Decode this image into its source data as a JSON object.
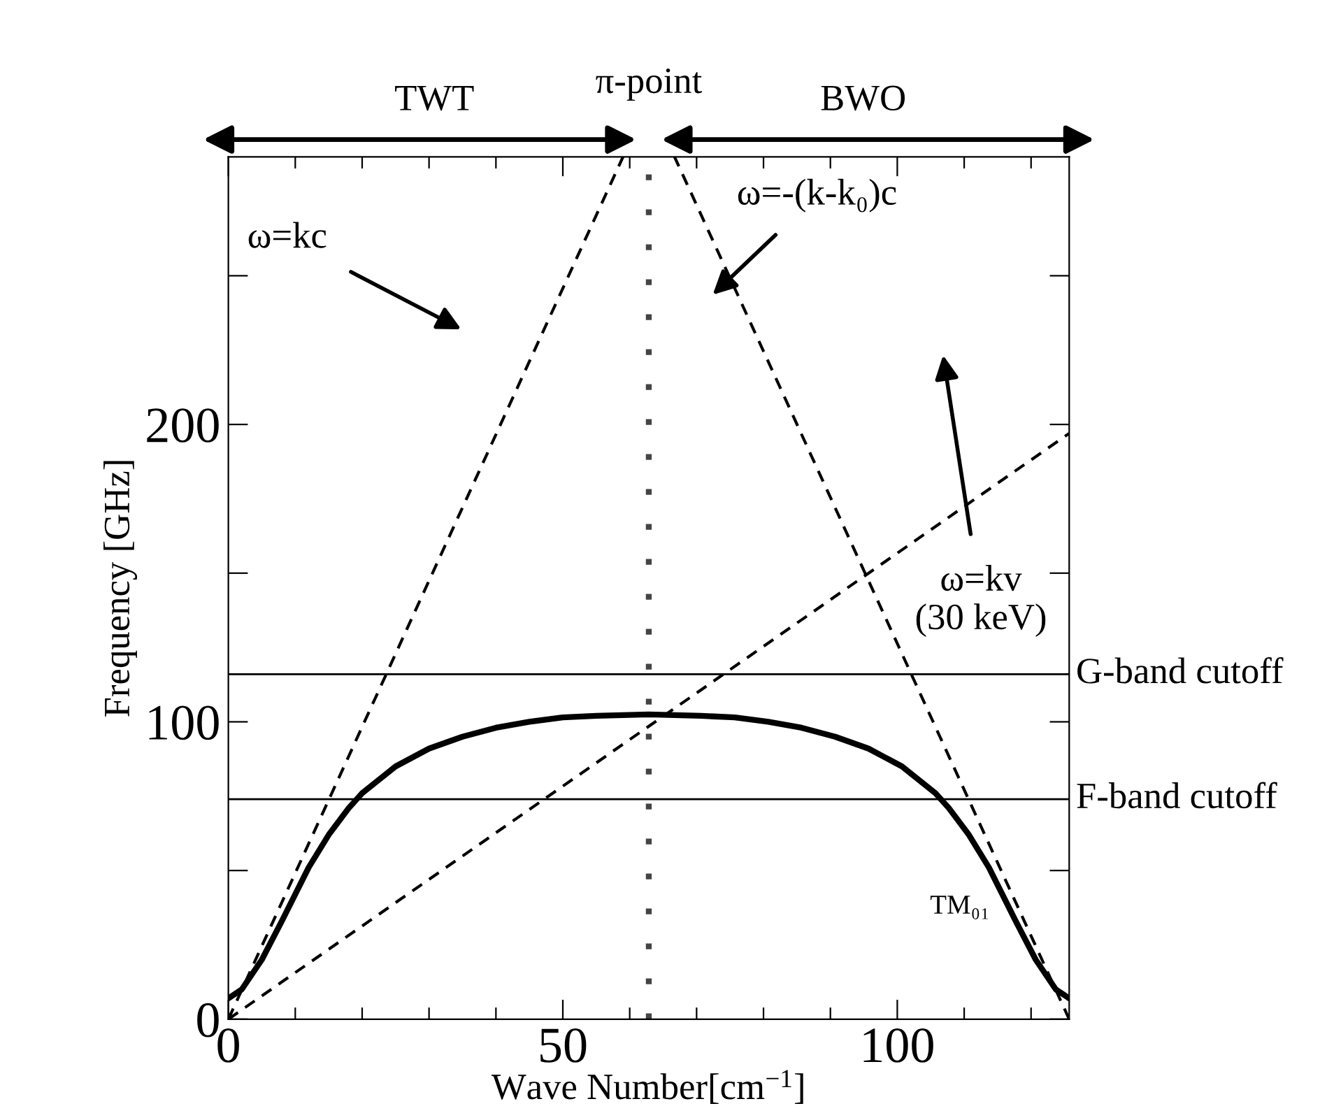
{
  "chart_data": {
    "type": "line",
    "xlabel": "Wave Number[cm$^{−1}$]",
    "ylabel": "Frequency [GHz]",
    "xlim": [
      0,
      125.7
    ],
    "ylim": [
      0,
      290
    ],
    "xticks": [
      0,
      {
        "value": 10,
        "label": null
      },
      {
        "value": 20,
        "label": null
      },
      {
        "value": 30,
        "label": null
      },
      {
        "value": 40,
        "label": null
      },
      50,
      {
        "value": 60,
        "label": null
      },
      {
        "value": 70,
        "label": null
      },
      {
        "value": 80,
        "label": null
      },
      {
        "value": 90,
        "label": null
      },
      100,
      {
        "value": 110,
        "label": null
      },
      {
        "value": 120,
        "label": null
      }
    ],
    "yticks": [
      0,
      {
        "value": 50,
        "label": null
      },
      100,
      {
        "value": 150,
        "label": null
      },
      200,
      {
        "value": 250,
        "label": null
      }
    ],
    "series": [
      {
        "color": "#000000",
        "line_style": "solid",
        "x": [
          0,
          2,
          5,
          8,
          10,
          12,
          15,
          18,
          20,
          25,
          30,
          35,
          40,
          45,
          50,
          55,
          62.85,
          70.7,
          75.7,
          80.7,
          85.7,
          90.7,
          95.7,
          100.7,
          105.7,
          107.7,
          110.7,
          113.7,
          115.7,
          117.7,
          120.7,
          123.7,
          125.7
        ],
        "values": [
          7,
          10,
          20,
          33,
          42,
          51,
          62,
          71,
          76,
          85,
          91,
          95,
          98,
          100,
          101.5,
          102,
          102.5,
          102,
          101.5,
          100,
          98,
          95,
          91,
          85,
          76,
          71,
          62,
          51,
          42,
          33,
          20,
          10,
          7
        ]
      },
      {
        "color": "#000000",
        "line_style": "dashed",
        "x": [
          0,
          59
        ],
        "values": [
          0,
          290
        ]
      },
      {
        "color": "#000000",
        "line_style": "dashed",
        "x": [
          125.7,
          66.7
        ],
        "values": [
          0,
          290
        ]
      },
      {
        "color": "#000000",
        "line_style": "dashed",
        "x": [
          0,
          125.7
        ],
        "values": [
          0,
          197
        ]
      }
    ],
    "ref_lines": [
      {
        "axis": "x",
        "value": 62.85,
        "label": "π-point",
        "line_style": "dotted",
        "color": "#444444"
      },
      {
        "axis": "y",
        "value": 116,
        "label": "G-band cutoff",
        "line_style": "solid",
        "color": "#000000"
      },
      {
        "axis": "y",
        "value": 74,
        "label": "F-band cutoff",
        "line_style": "solid",
        "color": "#000000"
      }
    ],
    "annotations": [
      "ω=kc",
      "ω=-(k-k₀)c",
      "ω=kv\n(30 keV)",
      "TM₀₁",
      "TWT",
      "BWO"
    ]
  }
}
